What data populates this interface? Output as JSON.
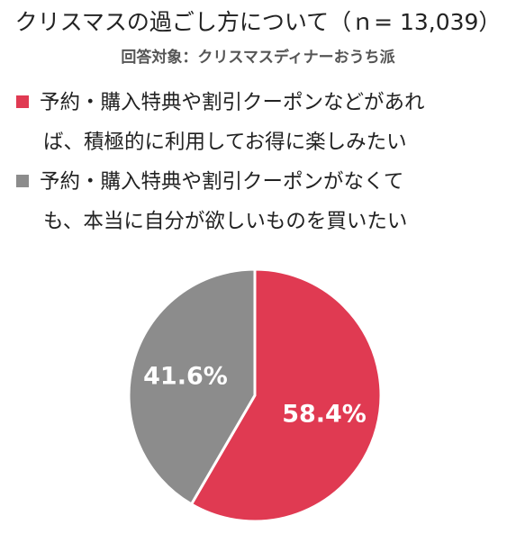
{
  "title": "クリスマスの過ごし方について（ｎ= 13,039）",
  "subtitle": "回答対象：クリスマスディナーおうち派",
  "legend": [
    {
      "line1": "予約・購入特典や割引クーポンなどがあれ",
      "line2": "ば、積極的に利用してお得に楽しみたい",
      "color": "#e03a52"
    },
    {
      "line1": "予約・購入特典や割引クーポンがなくて",
      "line2": "も、本当に自分が欲しいものを買いたい",
      "color": "#8c8c8c"
    }
  ],
  "chart_data": {
    "type": "pie",
    "slices": [
      {
        "label": "予約・購入特典や割引クーポンなどがあれば、積極的に利用してお得に楽しみたい",
        "value": 58.4,
        "display": "58.4%",
        "color": "#e03a52"
      },
      {
        "label": "予約・購入特典や割引クーポンがなくても、本当に自分が欲しいものを買いたい",
        "value": 41.6,
        "display": "41.6%",
        "color": "#8c8c8c"
      }
    ],
    "start": "12 o'clock",
    "direction": "clockwise"
  }
}
